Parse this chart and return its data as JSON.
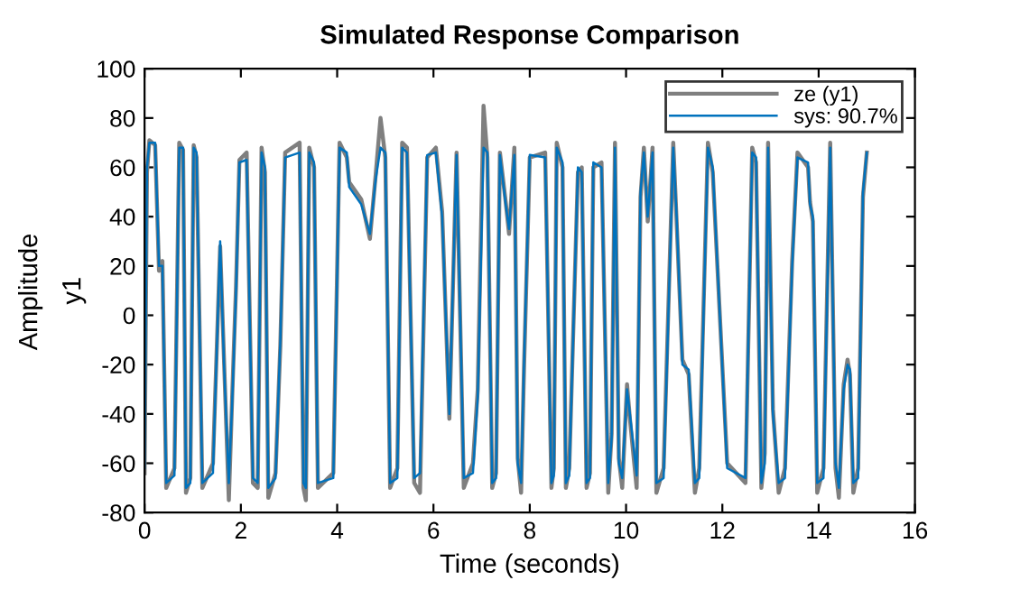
{
  "chart_data": {
    "type": "line",
    "title": "Simulated Response Comparison",
    "xlabel": "Time (seconds)",
    "ylabel": "y1",
    "annotations": [
      "Amplitude"
    ],
    "x": [
      0,
      0.05,
      0.1,
      0.22,
      0.3,
      0.37,
      0.45,
      0.62,
      0.72,
      0.8,
      0.86,
      0.95,
      1.02,
      1.08,
      1.2,
      1.42,
      1.57,
      1.65,
      1.75,
      1.82,
      1.9,
      1.97,
      2.12,
      2.25,
      2.35,
      2.43,
      2.5,
      2.57,
      2.72,
      2.82,
      2.92,
      3.22,
      3.3,
      3.35,
      3.42,
      3.52,
      3.6,
      3.92,
      4.05,
      4.2,
      4.25,
      4.5,
      4.68,
      4.8,
      4.9,
      5.0,
      5.1,
      5.25,
      5.35,
      5.45,
      5.6,
      5.72,
      5.87,
      6.05,
      6.18,
      6.33,
      6.48,
      6.63,
      6.82,
      6.92,
      7.04,
      7.12,
      7.22,
      7.3,
      7.38,
      7.5,
      7.57,
      7.68,
      7.75,
      7.82,
      7.88,
      8.0,
      8.32,
      8.45,
      8.5,
      8.56,
      8.68,
      8.75,
      8.82,
      9.0,
      9.08,
      9.18,
      9.25,
      9.32,
      9.49,
      9.63,
      9.7,
      9.77,
      9.85,
      9.92,
      10.02,
      10.08,
      10.22,
      10.3,
      10.37,
      10.45,
      10.55,
      10.63,
      10.78,
      10.98,
      11.05,
      11.17,
      11.3,
      11.43,
      11.52,
      11.7,
      11.8,
      12.1,
      12.48,
      12.62,
      12.7,
      12.81,
      12.88,
      12.95,
      13.05,
      13.17,
      13.3,
      13.45,
      13.56,
      13.78,
      13.82,
      13.88,
      13.97,
      14.1,
      14.24,
      14.35,
      14.42,
      14.52,
      14.6,
      14.65,
      14.72,
      14.82,
      14.92,
      15.0
    ],
    "series": [
      {
        "name": "ze (y1)",
        "color": "#7f7f7f",
        "values": [
          -64,
          58,
          71,
          69,
          18,
          22,
          -70,
          -62,
          70,
          67,
          -72,
          -66,
          69,
          64,
          -70,
          -60,
          28,
          -18,
          -75,
          -33,
          12,
          63,
          66,
          -68,
          -70,
          68,
          58,
          -74,
          -64,
          -12,
          66,
          70,
          -70,
          -75,
          68,
          60,
          -70,
          -64,
          70,
          64,
          54,
          47,
          31,
          57,
          80,
          64,
          -70,
          -62,
          70,
          68,
          -68,
          -72,
          64,
          68,
          42,
          -42,
          66,
          -70,
          -60,
          -30,
          85,
          64,
          -70,
          -64,
          66,
          46,
          33,
          68,
          -58,
          -72,
          -22,
          64,
          66,
          -70,
          -62,
          70,
          60,
          -70,
          -62,
          58,
          60,
          -70,
          -64,
          60,
          62,
          -72,
          -48,
          70,
          -58,
          -70,
          -28,
          -42,
          -70,
          48,
          68,
          38,
          68,
          -72,
          -62,
          70,
          38,
          -18,
          -24,
          -72,
          -62,
          70,
          58,
          -60,
          -68,
          68,
          62,
          -70,
          -56,
          70,
          -38,
          -72,
          -62,
          22,
          66,
          60,
          46,
          38,
          -72,
          -62,
          70,
          -62,
          -74,
          -28,
          -18,
          -24,
          -72,
          -62,
          48,
          66
        ]
      },
      {
        "name": "sys: 90.7%",
        "color": "#0072bd",
        "values": [
          -62,
          60,
          70,
          70,
          20,
          20,
          -68,
          -65,
          68,
          68,
          -70,
          -68,
          68,
          66,
          -68,
          -64,
          30,
          -20,
          -68,
          -35,
          10,
          62,
          63,
          -66,
          -68,
          66,
          60,
          -70,
          -66,
          -10,
          64,
          66,
          -68,
          -70,
          66,
          62,
          -68,
          -66,
          68,
          66,
          52,
          45,
          33,
          55,
          68,
          66,
          -68,
          -66,
          68,
          66,
          -66,
          -64,
          65,
          66,
          40,
          -40,
          65,
          -66,
          -64,
          -33,
          68,
          66,
          -68,
          -66,
          65,
          45,
          35,
          65,
          -60,
          -68,
          -20,
          65,
          64,
          -68,
          -65,
          68,
          62,
          -68,
          -65,
          60,
          58,
          -68,
          -66,
          62,
          60,
          -68,
          -50,
          68,
          -60,
          -66,
          -30,
          -40,
          -65,
          50,
          66,
          40,
          66,
          -68,
          -66,
          68,
          40,
          -20,
          -22,
          -68,
          -66,
          68,
          60,
          -62,
          -66,
          66,
          64,
          -68,
          -60,
          68,
          -40,
          -68,
          -66,
          20,
          64,
          62,
          45,
          40,
          -68,
          -66,
          68,
          -60,
          -70,
          -30,
          -20,
          -22,
          -68,
          -66,
          50,
          66
        ]
      }
    ],
    "xlim": [
      0,
      16
    ],
    "xticks": [
      0,
      2,
      4,
      6,
      8,
      10,
      12,
      14,
      16
    ],
    "ylim": [
      -80,
      100
    ],
    "yticks": [
      -80,
      -60,
      -40,
      -20,
      0,
      20,
      40,
      60,
      80,
      100
    ],
    "grid": false,
    "legend": "top right"
  }
}
